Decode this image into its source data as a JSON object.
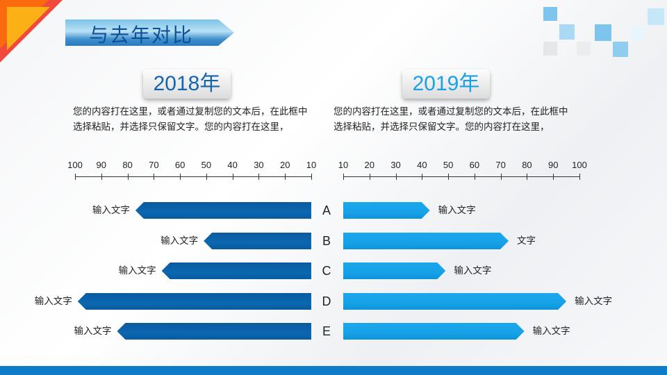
{
  "title": "与去年对比",
  "left": {
    "year": "2018年",
    "description": "您的内容打在这里，或者通过复制您的文本后，在此框中选择粘贴，并选择只保留文字。您的内容打在这里，"
  },
  "right": {
    "year": "2019年",
    "description": "您的内容打在这里，或者通过复制您的文本后，在此框中选择粘贴，并选择只保留文字。您的内容打在这里，"
  },
  "colors": {
    "left_bar": "#0b66ad",
    "right_bar": "#1aa3ea",
    "year_left": "#1565ad",
    "year_right": "#1aa0e6"
  },
  "chart_data": {
    "type": "bar",
    "orientation": "horizontal-butterfly",
    "categories": [
      "A",
      "B",
      "C",
      "D",
      "E"
    ],
    "ticks": [
      10,
      20,
      30,
      40,
      50,
      60,
      70,
      80,
      90,
      100
    ],
    "xlim": [
      10,
      100
    ],
    "series": [
      {
        "name": "2018年",
        "values": [
          77,
          51,
          67,
          99,
          84
        ],
        "labels": [
          "输入文字",
          "输入文字",
          "输入文字",
          "输入文字",
          "输入文字"
        ]
      },
      {
        "name": "2019年",
        "values": [
          43,
          73,
          49,
          95,
          79
        ],
        "labels": [
          "输入文字",
          "文字",
          "输入文字",
          "输入文字",
          "输入文字"
        ]
      }
    ]
  }
}
